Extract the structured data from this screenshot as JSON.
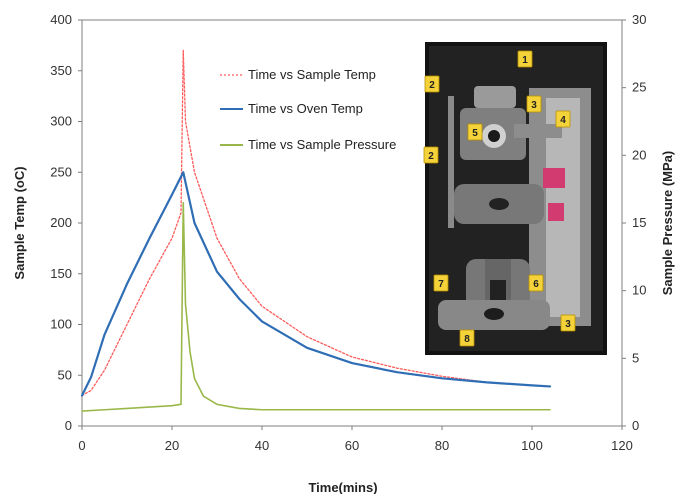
{
  "chart_data": {
    "type": "line",
    "xlabel": "Time(mins)",
    "ylabel": "Sample Temp (oC)",
    "y2label": "Sample Pressure (MPa)",
    "xlim": [
      0,
      120
    ],
    "ylim": [
      0,
      400
    ],
    "y2lim": [
      0,
      30
    ],
    "xticks": [
      "0",
      "20",
      "40",
      "60",
      "80",
      "100",
      "120"
    ],
    "yticks": [
      "0",
      "50",
      "100",
      "150",
      "200",
      "250",
      "300",
      "350",
      "400"
    ],
    "y2ticks": [
      "0",
      "5",
      "10",
      "15",
      "20",
      "25",
      "30"
    ],
    "grid": false,
    "legend_position": "top-center",
    "series": [
      {
        "name": "Time vs Sample Temp",
        "axis": "left",
        "color": "#ff5a5a",
        "style": "dotted",
        "x": [
          0,
          2,
          5,
          10,
          15,
          20,
          22,
          22.5,
          23,
          25,
          30,
          35,
          40,
          50,
          60,
          70,
          80,
          90,
          100,
          104
        ],
        "y": [
          30,
          35,
          55,
          100,
          145,
          185,
          210,
          370,
          300,
          250,
          185,
          145,
          118,
          88,
          68,
          57,
          49,
          43,
          40,
          39
        ]
      },
      {
        "name": "Time vs Oven Temp",
        "axis": "left",
        "color": "#2f6db5",
        "style": "solid",
        "x": [
          0,
          2,
          5,
          10,
          15,
          20,
          22.5,
          23,
          25,
          30,
          35,
          40,
          50,
          60,
          70,
          80,
          90,
          100,
          104
        ],
        "y": [
          30,
          48,
          90,
          140,
          185,
          228,
          250,
          240,
          200,
          152,
          125,
          103,
          77,
          62,
          53,
          47,
          43,
          40,
          39
        ]
      },
      {
        "name": "Time vs Sample Pressure",
        "axis": "right",
        "color": "#9ab84a",
        "style": "solid",
        "x": [
          0,
          5,
          10,
          15,
          20,
          22,
          22.5,
          23,
          24,
          25,
          27,
          30,
          35,
          40,
          50,
          60,
          80,
          100,
          104
        ],
        "y": [
          1.1,
          1.2,
          1.3,
          1.4,
          1.5,
          1.6,
          16.5,
          9,
          5.5,
          3.5,
          2.2,
          1.6,
          1.3,
          1.2,
          1.2,
          1.2,
          1.2,
          1.2,
          1.2
        ]
      }
    ]
  },
  "inset": {
    "labels": [
      "1",
      "2",
      "3",
      "4",
      "5",
      "2",
      "7",
      "6",
      "8",
      "3"
    ]
  }
}
